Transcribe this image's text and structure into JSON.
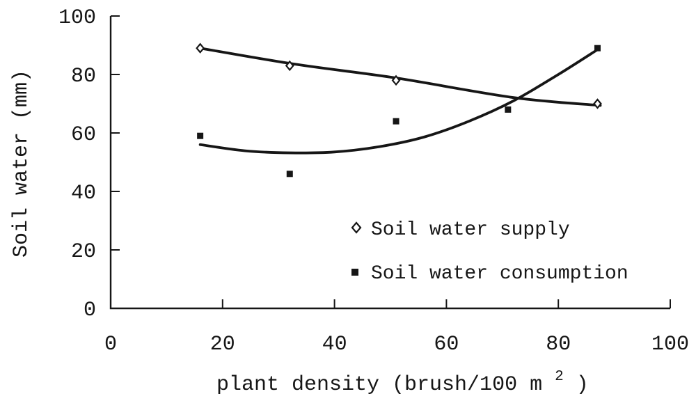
{
  "figure": {
    "background": "#ffffff",
    "ink_color": "#161616"
  },
  "chart_data": {
    "type": "scatter",
    "title": "",
    "xlabel": "plant density (brush/100 m²)",
    "xlabel_parts": {
      "main": "plant density (brush/100 m",
      "sup": "2",
      "end": ")"
    },
    "ylabel": "Soil water (mm)",
    "xlim": [
      0,
      100
    ],
    "ylim": [
      0,
      100
    ],
    "xticks": [
      0,
      20,
      40,
      60,
      80,
      100
    ],
    "yticks": [
      0,
      20,
      40,
      60,
      80,
      100
    ],
    "grid": false,
    "legend_position": "inside-right-middle",
    "series": [
      {
        "name": "Soil water supply",
        "marker": "open-diamond",
        "points": [
          [
            16,
            89
          ],
          [
            32,
            83
          ],
          [
            51,
            78
          ],
          [
            87,
            70
          ]
        ],
        "trend": [
          [
            16,
            89
          ],
          [
            33,
            83.5
          ],
          [
            51,
            78.8
          ],
          [
            72,
            72.1
          ],
          [
            87.5,
            69.4
          ]
        ]
      },
      {
        "name": "Soil water consumption",
        "marker": "filled-square",
        "points": [
          [
            16,
            59
          ],
          [
            32,
            46
          ],
          [
            51,
            64
          ],
          [
            71,
            68
          ],
          [
            87,
            89
          ]
        ],
        "trend": [
          [
            16,
            56
          ],
          [
            24,
            53.9
          ],
          [
            32,
            53.2
          ],
          [
            40,
            53.5
          ],
          [
            48,
            55.3
          ],
          [
            56,
            58.6
          ],
          [
            64,
            64
          ],
          [
            72,
            71
          ],
          [
            80,
            80
          ],
          [
            87,
            88.5
          ]
        ]
      }
    ]
  }
}
